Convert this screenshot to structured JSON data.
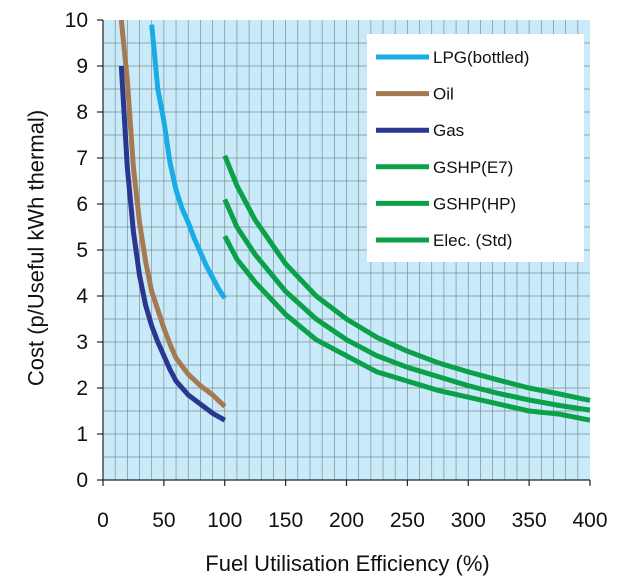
{
  "chart_data": {
    "type": "line",
    "xlabel": "Fuel Utilisation Efficiency (%)",
    "ylabel": "Cost  (p/Useful kWh thermal)",
    "xlim": [
      0,
      400
    ],
    "ylim": [
      0,
      10
    ],
    "x_ticks": [
      0,
      50,
      100,
      150,
      200,
      250,
      300,
      350,
      400
    ],
    "y_ticks": [
      0,
      1,
      2,
      3,
      4,
      5,
      6,
      7,
      8,
      9,
      10
    ],
    "grid": true,
    "legend_position": "top-right",
    "series": [
      {
        "name": "LPG(bottled)",
        "color": "#1aace6",
        "x": [
          40,
          45,
          50,
          55,
          60,
          65,
          70,
          75,
          80,
          85,
          90,
          95,
          100
        ],
        "y": [
          9.9,
          8.5,
          7.8,
          6.9,
          6.3,
          5.9,
          5.6,
          5.25,
          4.95,
          4.65,
          4.4,
          4.15,
          3.95
        ]
      },
      {
        "name": "Oil",
        "color": "#a57a52",
        "x": [
          15,
          20,
          25,
          30,
          35,
          40,
          45,
          50,
          55,
          60,
          70,
          80,
          90,
          100
        ],
        "y": [
          10,
          8.7,
          6.8,
          5.6,
          4.75,
          4.1,
          3.7,
          3.3,
          2.95,
          2.65,
          2.3,
          2.05,
          1.85,
          1.6
        ]
      },
      {
        "name": "Gas",
        "color": "#2b3690",
        "x": [
          15,
          20,
          25,
          30,
          35,
          40,
          45,
          50,
          55,
          60,
          70,
          80,
          90,
          100
        ],
        "y": [
          9,
          6.8,
          5.4,
          4.45,
          3.8,
          3.35,
          3.0,
          2.7,
          2.4,
          2.15,
          1.85,
          1.65,
          1.45,
          1.3
        ]
      },
      {
        "name": "GSHP(E7)",
        "color": "#0aa14a",
        "x": [
          100,
          110,
          125,
          150,
          175,
          200,
          225,
          250,
          275,
          300,
          325,
          350,
          375,
          400
        ],
        "y": [
          5.3,
          4.8,
          4.3,
          3.6,
          3.05,
          2.7,
          2.35,
          2.15,
          1.95,
          1.8,
          1.65,
          1.5,
          1.43,
          1.3
        ]
      },
      {
        "name": "GSHP(HP)",
        "color": "#0aa14a",
        "x": [
          100,
          110,
          125,
          150,
          175,
          200,
          225,
          250,
          275,
          300,
          325,
          350,
          375,
          400
        ],
        "y": [
          6.1,
          5.5,
          4.9,
          4.1,
          3.5,
          3.05,
          2.7,
          2.45,
          2.25,
          2.05,
          1.88,
          1.74,
          1.62,
          1.52
        ]
      },
      {
        "name": "Elec. (Std)",
        "color": "#0aa14a",
        "x": [
          100,
          110,
          125,
          150,
          175,
          200,
          225,
          250,
          275,
          300,
          325,
          350,
          375,
          400
        ],
        "y": [
          7.05,
          6.4,
          5.65,
          4.7,
          4.0,
          3.5,
          3.1,
          2.8,
          2.55,
          2.35,
          2.17,
          2.0,
          1.87,
          1.73
        ]
      }
    ]
  }
}
